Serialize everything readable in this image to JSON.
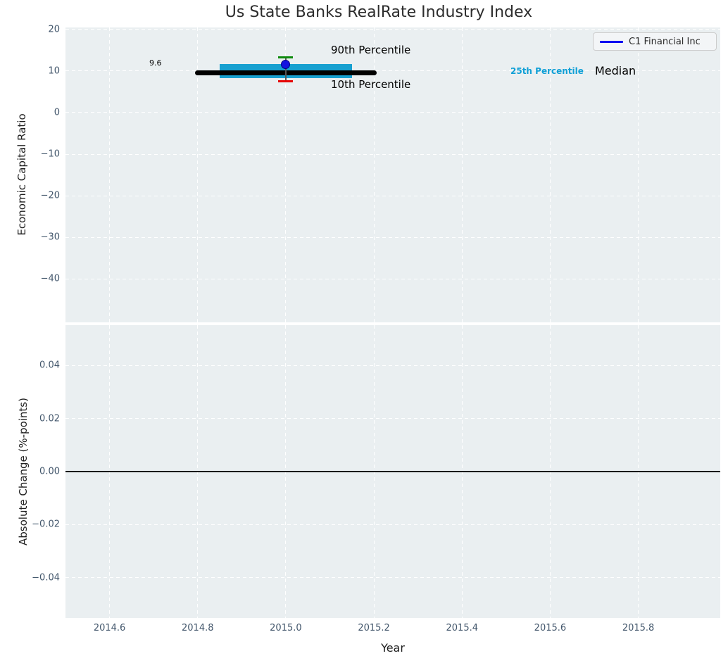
{
  "chart_data": {
    "type": "box-whisker-timeline",
    "title": "Us State Banks RealRate Industry Index",
    "x": {
      "label": "Year",
      "xlim": [
        2014.5,
        2015.986
      ],
      "ticks": [
        {
          "v": 2014.6,
          "label": "2014.6"
        },
        {
          "v": 2014.8,
          "label": "2014.8"
        },
        {
          "v": 2015.0,
          "label": "2015.0"
        },
        {
          "v": 2015.2,
          "label": "2015.2"
        },
        {
          "v": 2015.4,
          "label": "2015.4"
        },
        {
          "v": 2015.6,
          "label": "2015.6"
        },
        {
          "v": 2015.8,
          "label": "2015.8"
        }
      ]
    },
    "panels": [
      {
        "name": "economic-capital-ratio",
        "ylabel": "Economic Capital Ratio",
        "ylim": [
          -50.4,
          20.44
        ],
        "yticks": [
          {
            "v": 20,
            "label": "20"
          },
          {
            "v": 10,
            "label": "10"
          },
          {
            "v": 0,
            "label": "0"
          },
          {
            "v": -10,
            "label": "−10"
          },
          {
            "v": -20,
            "label": "−20"
          },
          {
            "v": -30,
            "label": "−30"
          },
          {
            "v": -40,
            "label": "−40"
          }
        ],
        "legend": {
          "label": "C1 Financial Inc"
        },
        "annotations": {
          "p90": "90th Percentile",
          "p10": "10th Percentile",
          "p25": "25th Percentile",
          "median": "Median"
        },
        "series": {
          "median": {
            "value": 9.6,
            "label": "9.6",
            "x_start": 2014.8,
            "x_end": 2015.2
          },
          "iqr": {
            "p25": 8.2,
            "p75": 11.7,
            "x_start": 2014.85,
            "x_end": 2015.15
          },
          "whiskers": {
            "p10": 7.5,
            "p90": 13.3,
            "x": 2015.0
          },
          "company": {
            "name": "C1 Financial Inc",
            "x": 2015.0,
            "value": 11.5
          }
        }
      },
      {
        "name": "absolute-change",
        "ylabel": "Absolute Change (%-points)",
        "ylim": [
          -0.0551,
          0.0551
        ],
        "yticks": [
          {
            "v": 0.04,
            "label": "0.04"
          },
          {
            "v": 0.02,
            "label": "0.02"
          },
          {
            "v": 0.0,
            "label": "0.00"
          },
          {
            "v": -0.02,
            "label": "−0.02"
          },
          {
            "v": -0.04,
            "label": "−0.04"
          }
        ],
        "zero_line": 0.0
      }
    ],
    "colors": {
      "axes_background": "#eaeff1",
      "grid": "#ffffff",
      "iqr_band": "#17a0d0",
      "median_line": "#000000",
      "p90_cap": "#0d8a0d",
      "p10_cap": "#e60000",
      "whisker": "#555555",
      "company_dot": "#1414e0",
      "company_dot_edge": "#000080",
      "legend_line": "#0000f0",
      "p25_label_color": "#0f9fd6",
      "zero_line": "#000000"
    }
  }
}
